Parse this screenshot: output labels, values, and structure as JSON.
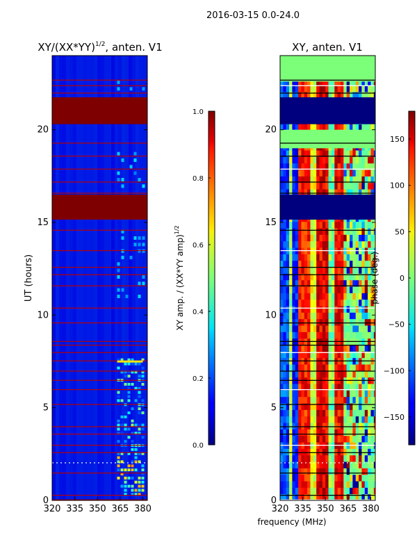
{
  "figure": {
    "suptitle": "2016-03-15 0.0-24.0"
  },
  "chart_data": [
    {
      "type": "heatmap",
      "title_main": "XY/(XX*YY)",
      "title_exp": "1/2",
      "title_tail": ", anten. V1",
      "xlabel": "",
      "ylabel": "UT (hours)",
      "xlim": [
        320,
        383
      ],
      "ylim": [
        0,
        24
      ],
      "xticks": [
        320,
        335,
        350,
        365,
        380
      ],
      "yticks": [
        0,
        5,
        10,
        15,
        20
      ],
      "quantity": "normalized XY amplitude",
      "saturated_bands_hours": [
        [
          15.15,
          16.5
        ],
        [
          20.3,
          21.75
        ]
      ],
      "flagged_lines_hours": [
        0.05,
        0.3,
        1.5,
        2.6,
        3.0,
        3.6,
        4.0,
        5.2,
        6.0,
        6.5,
        7.0,
        7.55,
        8.0,
        8.4,
        8.6,
        9.6,
        10.4,
        11.6,
        12.2,
        12.6,
        13.5,
        14.6,
        16.6,
        17.2,
        17.9,
        18.6,
        19.3,
        22.0,
        22.4,
        22.7
      ],
      "rfi_region_mhz": [
        363,
        380
      ],
      "colorbar": {
        "label_main": "XY amp. / (XX*YY amp)",
        "label_exp": "1/2",
        "range": [
          0.0,
          1.0
        ],
        "ticks": [
          "0.0",
          "0.2",
          "0.4",
          "0.6",
          "0.8",
          "1.0"
        ]
      }
    },
    {
      "type": "heatmap",
      "title": "XY, anten. V1",
      "xlabel": "frequency (MHz)",
      "ylabel": "",
      "xlim": [
        320,
        383
      ],
      "ylim": [
        0,
        24
      ],
      "xticks": [
        320,
        335,
        350,
        365,
        380
      ],
      "yticks": [
        0,
        5,
        10,
        15,
        20
      ],
      "quantity": "XY phase",
      "flagged_bands_hours": [
        [
          15.15,
          16.5
        ],
        [
          20.3,
          21.75
        ]
      ],
      "colorbar": {
        "label": "phase (deg.)",
        "range": [
          -180,
          180
        ],
        "ticks": [
          "−150",
          "−100",
          "−50",
          "0",
          "50",
          "100",
          "150"
        ]
      }
    }
  ]
}
